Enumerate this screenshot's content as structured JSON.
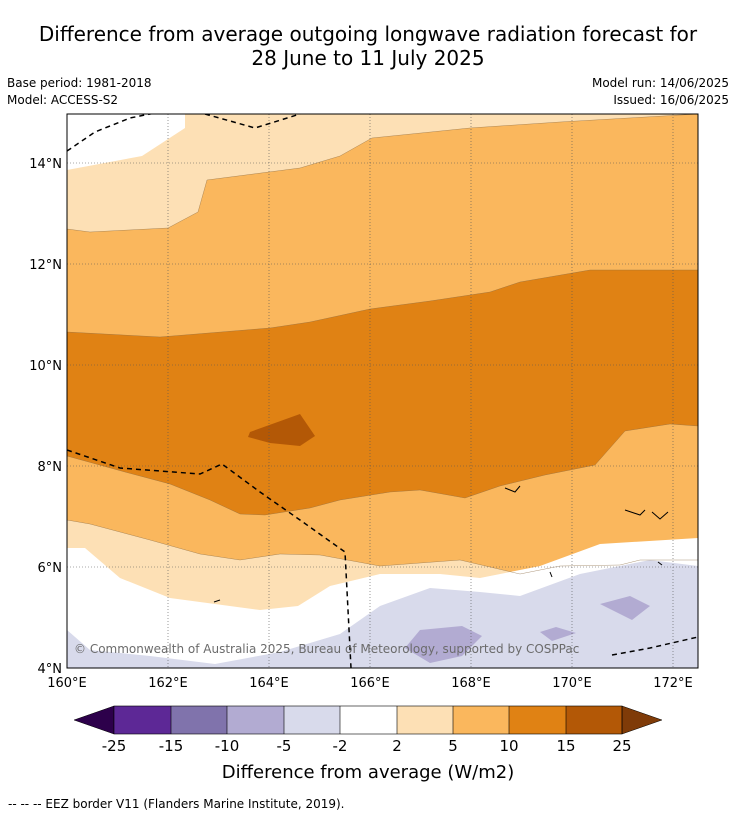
{
  "header": {
    "title_line1": "Difference from average outgoing longwave radiation forecast for",
    "title_line2": "28 June to 11 July 2025",
    "base_period": "Base period: 1981-2018",
    "model": "Model: ACCESS-S2",
    "model_run": "Model run: 14/06/2025",
    "issued": "Issued: 16/06/2025"
  },
  "map": {
    "lat_labels": [
      "14°N",
      "12°N",
      "10°N",
      "8°N",
      "6°N",
      "4°N"
    ],
    "lon_labels": [
      "160°E",
      "162°E",
      "164°E",
      "166°E",
      "168°E",
      "170°E",
      "172°E"
    ],
    "copyright": "© Commonwealth of Australia 2025, Bureau of Meteorology, supported by COSPPac",
    "fill_colors": {
      "pos_15_25": "#b35806",
      "pos_10_15": "#e08214",
      "pos_5_10": "#fab75d",
      "pos_2_5": "#fde0b5",
      "neutral": "#ffffff",
      "neg_2_5": "#d8daeb",
      "neg_5_10": "#b2abd2"
    }
  },
  "colorbar": {
    "title": "Difference from average (W/m2)",
    "ticks": [
      "-25",
      "-15",
      "-10",
      "-5",
      "-2",
      "2",
      "5",
      "10",
      "15",
      "25"
    ],
    "colors": [
      "#5d2896",
      "#8073ac",
      "#b2abd2",
      "#d8daeb",
      "#ffffff",
      "#fde0b5",
      "#fab75d",
      "#e08214",
      "#b35806"
    ],
    "under_color": "#2d004b",
    "over_color": "#7f3b08"
  },
  "footer": {
    "legend_text": "-- -- -- EEZ border V11 (Flanders Marine Institute, 2019)."
  }
}
